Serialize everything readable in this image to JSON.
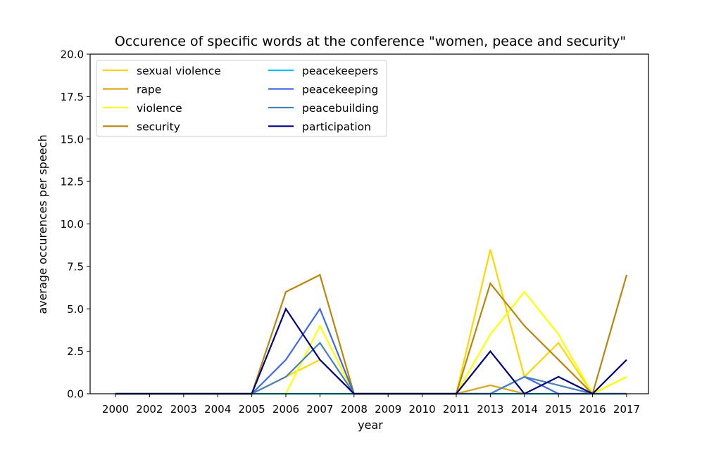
{
  "chart_data": {
    "type": "line",
    "title": "Occurence of specific words at the conference \"women, peace and security\"",
    "xlabel": "year",
    "ylabel": "average occurences per speech",
    "categories": [
      "2000",
      "2002",
      "2003",
      "2004",
      "2005",
      "2006",
      "2007",
      "2008",
      "2009",
      "2010",
      "2011",
      "2013",
      "2014",
      "2015",
      "2016",
      "2017"
    ],
    "ylim": [
      0,
      20
    ],
    "yticks": [
      "0.0",
      "2.5",
      "5.0",
      "7.5",
      "10.0",
      "12.5",
      "15.0",
      "17.5",
      "20.0"
    ],
    "grid": false,
    "legend_position": "top-left",
    "series": [
      {
        "name": "sexual violence",
        "color": "#FFD700",
        "values": [
          0,
          0,
          0,
          0,
          0,
          1,
          2,
          0,
          0,
          0,
          0,
          8.5,
          1,
          3,
          0,
          1
        ]
      },
      {
        "name": "rape",
        "color": "#DAA520",
        "values": [
          0,
          0,
          0,
          0,
          0,
          0,
          0,
          0,
          0,
          0,
          0,
          0.5,
          0,
          0,
          0,
          0
        ]
      },
      {
        "name": "violence",
        "color": "#FFFF00",
        "values": [
          0,
          0,
          0,
          0,
          0,
          0,
          4,
          0,
          0,
          0,
          0,
          3.5,
          6,
          3.5,
          0,
          1
        ]
      },
      {
        "name": "security",
        "color": "#B8860B",
        "values": [
          0,
          0,
          0,
          0,
          0,
          6,
          7,
          0,
          0,
          0,
          0,
          6.5,
          4,
          2,
          0,
          7
        ]
      },
      {
        "name": "peacekeepers",
        "color": "#00BFFF",
        "values": [
          0,
          0,
          0,
          0,
          0,
          0,
          0,
          0,
          0,
          0,
          0,
          0,
          0,
          0,
          0,
          0
        ]
      },
      {
        "name": "peacekeeping",
        "color": "#4169E1",
        "values": [
          0,
          0,
          0,
          0,
          0,
          2,
          5,
          0,
          0,
          0,
          0,
          0,
          1,
          0,
          0,
          0
        ]
      },
      {
        "name": "peacebuilding",
        "color": "#4682B4",
        "values": [
          0,
          0,
          0,
          0,
          0,
          1,
          3,
          0,
          0,
          0,
          0,
          0,
          1,
          0.5,
          0,
          0
        ]
      },
      {
        "name": "participation",
        "color": "#000080",
        "values": [
          0,
          0,
          0,
          0,
          0,
          5,
          2,
          0,
          0,
          0,
          0,
          2.5,
          0,
          1,
          0,
          2
        ]
      }
    ]
  }
}
